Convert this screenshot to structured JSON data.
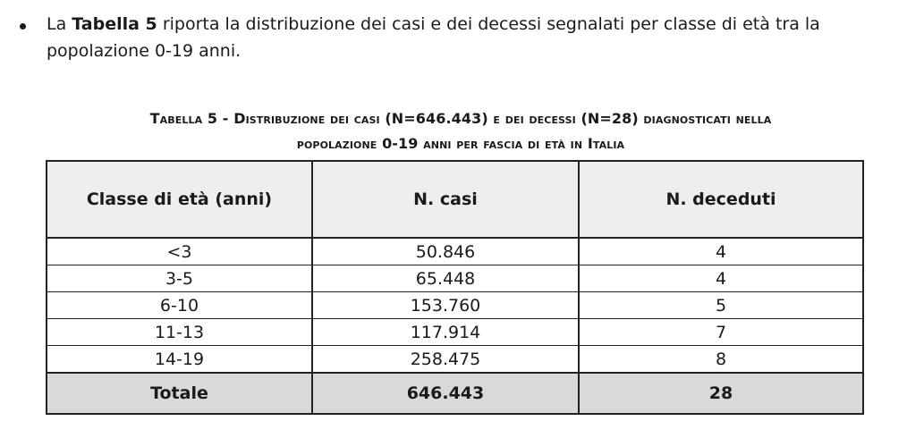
{
  "intro": {
    "prefix": "La ",
    "bold": "Tabella 5",
    "suffix": " riporta la distribuzione dei casi e dei decessi segnalati per classe di età tra la popolazione 0-19 anni."
  },
  "caption": {
    "line1": "Tabella 5 - Distribuzione dei casi (N=646.443) e dei decessi (N=28) diagnosticati nella",
    "line2": "popolazione 0-19 anni per fascia di età in Italia"
  },
  "table": {
    "headers": [
      "Classe di età (anni)",
      "N. casi",
      "N. deceduti"
    ],
    "rows": [
      [
        "<3",
        "50.846",
        "4"
      ],
      [
        "3-5",
        "65.448",
        "4"
      ],
      [
        "6-10",
        "153.760",
        "5"
      ],
      [
        "11-13",
        "117.914",
        "7"
      ],
      [
        "14-19",
        "258.475",
        "8"
      ]
    ],
    "total": [
      "Totale",
      "646.443",
      "28"
    ]
  }
}
